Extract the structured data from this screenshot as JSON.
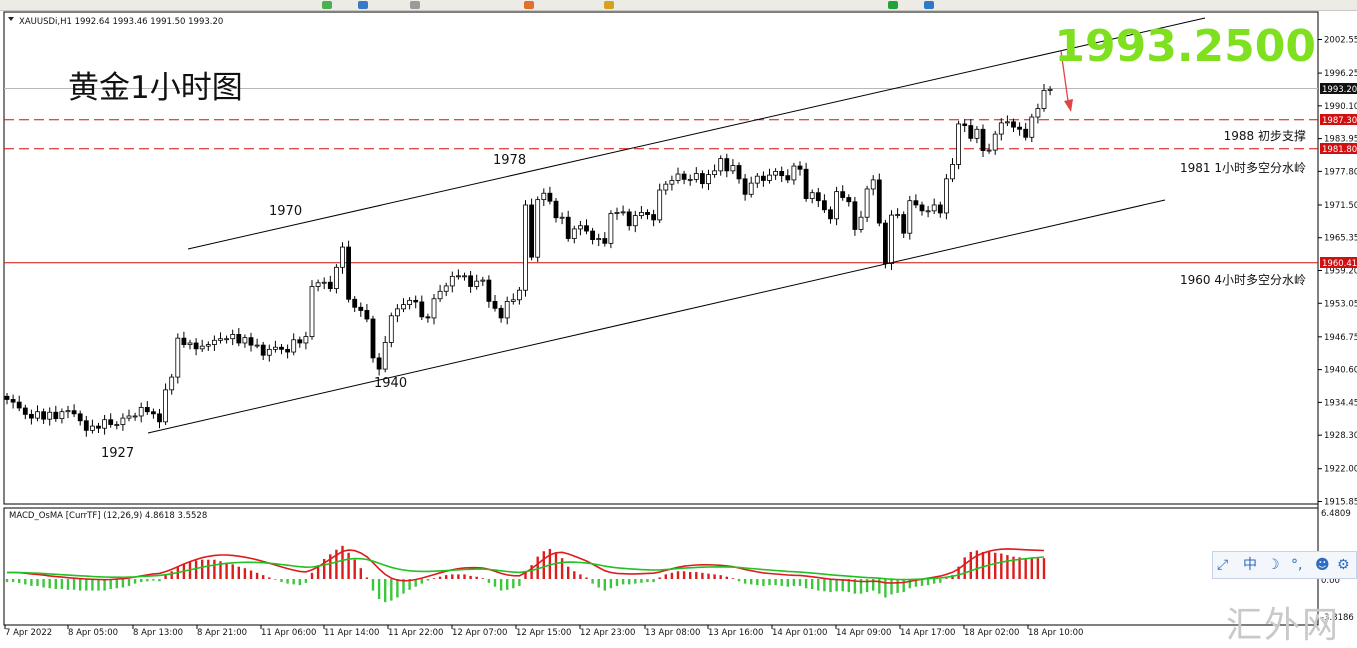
{
  "symbol_header": "XAUUSDi,H1  1992.64 1993.46 1991.50 1993.20",
  "main_title": "黄金1小时图",
  "big_price": "1993.2500",
  "colors": {
    "bull_candle": "#000000",
    "bear_candle": "#000000",
    "grid": "#ffffff",
    "big_price": "#7fe01f",
    "macd_pos": "#dd1c1c",
    "macd_neg": "#3cc63c",
    "signal_red": "#dd1c1c",
    "signal_green": "#22c022",
    "support_line": "#d01010"
  },
  "price_labels": {
    "current": "1993.20",
    "res_1987": "1987.30",
    "res_1981": "1981.80",
    "sup_1960": "1960.41"
  },
  "annotations": {
    "a1927": "1927",
    "a1970": "1970",
    "a1978": "1978",
    "a1940": "1940",
    "l1988": "1988 初步支撑",
    "l1981": "1981   1小时多空分水岭",
    "l1960": "1960   4小时多空分水岭"
  },
  "macd_label": "MACD_OsMA [CurrTF] (12,26,9) 4.8618 3.5528",
  "macd_axis": [
    "6.4809",
    "0.00",
    "-3.8186"
  ],
  "side_tools": [
    "⤢",
    "中",
    "☽",
    "°,",
    "☻",
    "⚙"
  ],
  "watermark": "汇外网",
  "chart_data": {
    "type": "candlestick",
    "symbol": "XAUUSDi",
    "timeframe": "H1",
    "ohlc_current": {
      "open": 1992.64,
      "high": 1993.46,
      "low": 1991.5,
      "close": 1993.2
    },
    "y_ticks": [
      2002.55,
      1996.25,
      1990.1,
      1983.95,
      1977.8,
      1971.5,
      1965.35,
      1959.2,
      1953.05,
      1946.75,
      1940.6,
      1934.45,
      1928.3,
      1922.0,
      1915.85
    ],
    "ylim": [
      1915.85,
      2006.0
    ],
    "x_ticks": [
      "7 Apr 2022",
      "8 Apr 05:00",
      "8 Apr 13:00",
      "8 Apr 21:00",
      "11 Apr 06:00",
      "11 Apr 14:00",
      "11 Apr 22:00",
      "12 Apr 07:00",
      "12 Apr 15:00",
      "12 Apr 23:00",
      "13 Apr 08:00",
      "13 Apr 16:00",
      "14 Apr 01:00",
      "14 Apr 09:00",
      "14 Apr 17:00",
      "18 Apr 02:00",
      "18 Apr 10:00"
    ],
    "horizontal_lines": [
      {
        "price": 1987.3,
        "style": "dashed"
      },
      {
        "price": 1981.8,
        "style": "dashed"
      },
      {
        "price": 1960.41,
        "style": "solid"
      }
    ],
    "channel_upper": [
      {
        "x": 23,
        "y": 1963.5
      },
      {
        "x": 149,
        "y": 2011.5
      }
    ],
    "channel_lower": [
      {
        "x": 18,
        "y": 1929.5
      },
      {
        "x": 144,
        "y": 1972.5
      }
    ],
    "closes": [
      1935.0,
      1934.5,
      1933.4,
      1932.2,
      1931.5,
      1932.7,
      1931.3,
      1932.6,
      1931.4,
      1932.7,
      1932.9,
      1932.3,
      1931.0,
      1929.2,
      1930.0,
      1929.6,
      1931.2,
      1930.3,
      1930.3,
      1931.5,
      1931.9,
      1931.9,
      1933.5,
      1932.7,
      1932.3,
      1930.8,
      1936.8,
      1939.2,
      1946.5,
      1945.3,
      1945.6,
      1944.5,
      1945.0,
      1945.3,
      1946.1,
      1946.4,
      1946.4,
      1947.2,
      1945.6,
      1946.6,
      1945.2,
      1945.2,
      1943.3,
      1944.4,
      1944.8,
      1944.4,
      1943.9,
      1946.2,
      1945.6,
      1946.8,
      1956.2,
      1956.9,
      1957.0,
      1955.8,
      1959.8,
      1963.6,
      1953.8,
      1952.3,
      1951.7,
      1950.1,
      1942.8,
      1940.7,
      1945.7,
      1950.7,
      1952.0,
      1952.8,
      1953.6,
      1953.3,
      1950.5,
      1950.3,
      1953.9,
      1955.3,
      1956.3,
      1958.1,
      1958.2,
      1958.2,
      1956.2,
      1957.2,
      1957.4,
      1953.4,
      1952.1,
      1950.3,
      1953.4,
      1953.7,
      1955.5,
      1971.5,
      1961.7,
      1972.5,
      1973.7,
      1972.2,
      1969.1,
      1969.2,
      1965.2,
      1967.0,
      1967.6,
      1966.6,
      1965.0,
      1965.2,
      1964.3,
      1969.9,
      1970.1,
      1970.2,
      1967.6,
      1969.5,
      1970.1,
      1969.7,
      1968.7,
      1974.3,
      1975.4,
      1976.1,
      1977.3,
      1976.3,
      1976.3,
      1977.4,
      1975.5,
      1977.2,
      1977.9,
      1980.2,
      1977.9,
      1978.9,
      1976.4,
      1973.5,
      1975.6,
      1976.9,
      1976.1,
      1977.1,
      1977.8,
      1977.0,
      1976.2,
      1978.8,
      1978.2,
      1972.7,
      1973.8,
      1972.3,
      1970.6,
      1968.9,
      1974.0,
      1972.9,
      1972.1,
      1966.9,
      1969.2,
      1974.5,
      1976.2,
      1968.1,
      1960.5,
      1969.6,
      1969.7,
      1966.2,
      1972.3,
      1971.5,
      1970.4,
      1970.4,
      1971.5,
      1970.0,
      1976.4,
      1979.1,
      1986.7,
      1986.4,
      1984.0,
      1985.7,
      1981.7,
      1981.8,
      1984.8,
      1986.9,
      1987.1,
      1986.1,
      1985.7,
      1984.2,
      1988.0,
      1989.6,
      1993.0,
      1993.2
    ]
  },
  "macd_data": {
    "zero_at": 0.0,
    "range": [
      -3.8186,
      6.4809
    ],
    "hist": [
      -0.4,
      -0.4,
      -0.5,
      -0.7,
      -0.9,
      -0.9,
      -1.1,
      -1.2,
      -1.3,
      -1.3,
      -1.4,
      -1.4,
      -1.5,
      -1.5,
      -1.5,
      -1.5,
      -1.5,
      -1.3,
      -1.2,
      -1.1,
      -0.9,
      -0.6,
      -0.4,
      -0.3,
      -0.2,
      -0.3,
      0.5,
      1.0,
      1.6,
      2.0,
      2.2,
      2.4,
      2.5,
      2.5,
      2.5,
      2.3,
      2.1,
      1.9,
      1.6,
      1.4,
      1.1,
      0.8,
      0.5,
      0.2,
      -0.1,
      -0.4,
      -0.6,
      -0.7,
      -0.8,
      -0.5,
      0.8,
      1.8,
      2.6,
      3.2,
      3.8,
      4.3,
      3.4,
      2.5,
      1.4,
      0.2,
      -1.5,
      -2.6,
      -3.0,
      -2.8,
      -2.4,
      -1.9,
      -1.4,
      -1.0,
      -0.6,
      -0.2,
      0.1,
      0.3,
      0.5,
      0.6,
      0.6,
      0.6,
      0.4,
      0.3,
      0.1,
      -0.5,
      -1.0,
      -1.5,
      -1.4,
      -1.2,
      -0.9,
      1.0,
      1.8,
      2.9,
      3.6,
      3.9,
      3.4,
      2.7,
      1.6,
      1.0,
      0.6,
      0.2,
      -0.6,
      -1.1,
      -1.5,
      -1.2,
      -0.9,
      -0.7,
      -0.7,
      -0.6,
      -0.5,
      -0.4,
      -0.4,
      0.2,
      0.6,
      0.8,
      1.0,
      1.0,
      0.9,
      0.9,
      0.8,
      0.7,
      0.6,
      0.5,
      0.3,
      0.1,
      -0.3,
      -0.6,
      -0.7,
      -0.8,
      -0.9,
      -0.8,
      -0.8,
      -0.9,
      -1.0,
      -0.9,
      -0.9,
      -1.2,
      -1.3,
      -1.5,
      -1.6,
      -1.7,
      -1.6,
      -1.6,
      -1.7,
      -1.9,
      -1.9,
      -1.7,
      -1.5,
      -1.9,
      -2.4,
      -2.0,
      -1.8,
      -1.7,
      -1.2,
      -1.0,
      -0.9,
      -0.8,
      -0.6,
      -0.5,
      0.1,
      0.5,
      1.6,
      2.8,
      3.5,
      3.7,
      3.5,
      3.5,
      3.4,
      3.3,
      3.1,
      2.9,
      2.8,
      2.7,
      2.7,
      2.7,
      2.7
    ]
  }
}
